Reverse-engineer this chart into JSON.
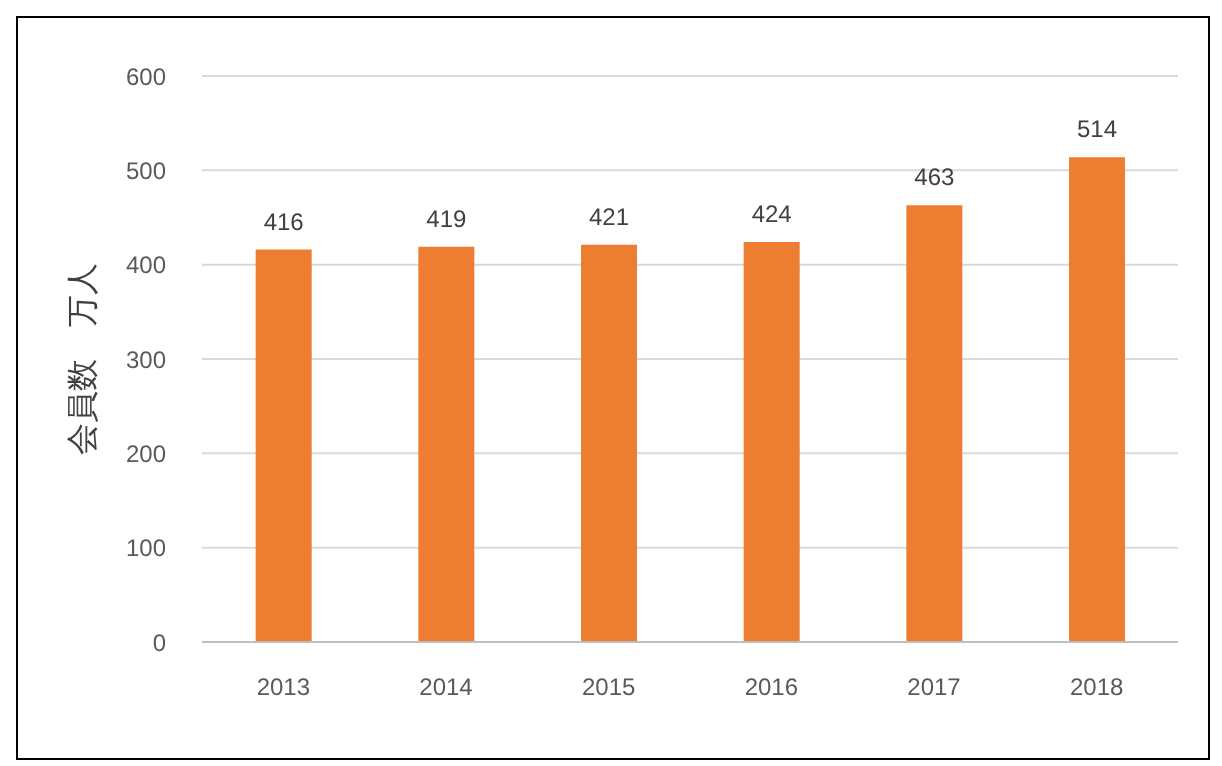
{
  "chart_data": {
    "type": "bar",
    "ylabel": "会員数　万人",
    "categories": [
      "2013",
      "2014",
      "2015",
      "2016",
      "2017",
      "2018"
    ],
    "values": [
      416,
      419,
      421,
      424,
      463,
      514
    ],
    "color": "#ed7d31",
    "ylim": [
      0,
      600
    ],
    "yticks": [
      0,
      100,
      200,
      300,
      400,
      500,
      600
    ],
    "grid": "y",
    "data_labels": true,
    "legend": false
  }
}
